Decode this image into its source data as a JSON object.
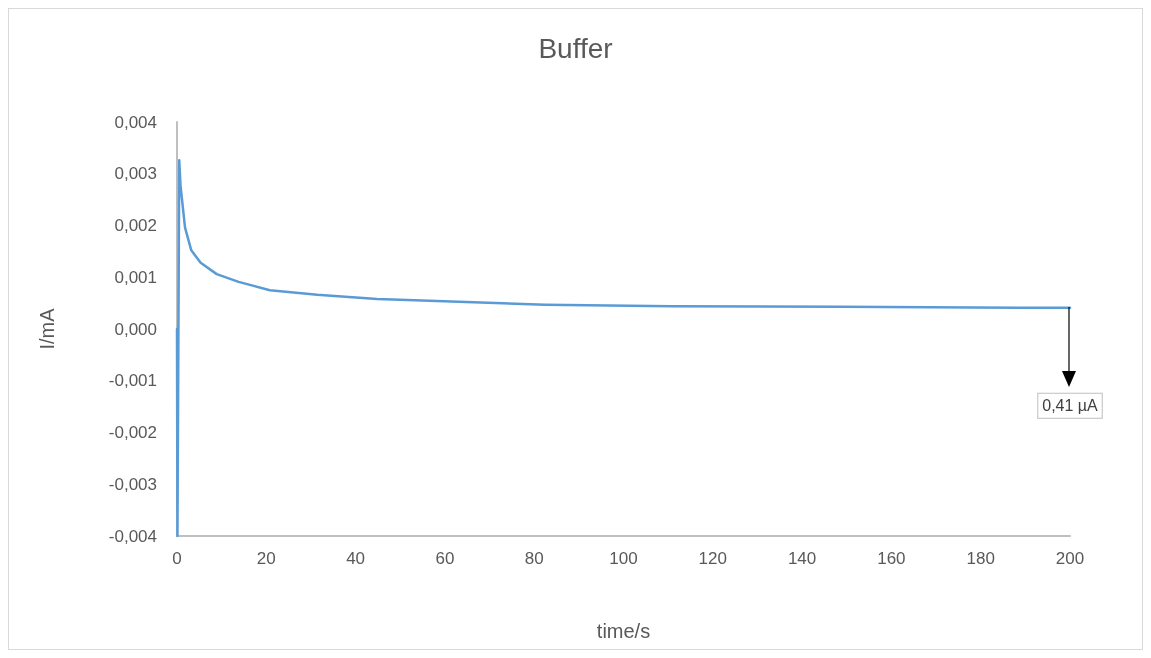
{
  "chart_data": {
    "type": "line",
    "title": "Buffer",
    "xlabel": "time/s",
    "ylabel": "I/mA",
    "x": [
      0,
      0.1,
      0.5,
      0.8,
      1.8,
      3.2,
      5.3,
      8.9,
      13.8,
      20.8,
      31.4,
      44.8,
      48.3,
      82.5,
      110.8,
      148.5,
      191.8,
      200
    ],
    "series": [
      {
        "color": "#5b9bd5",
        "values": [
          0,
          -0.004,
          0.00326,
          0.00276,
          0.00196,
          0.00152,
          0.00128,
          0.00106,
          0.00091,
          0.00075,
          0.00066,
          0.00058,
          0.00057,
          0.00047,
          0.00044,
          0.00043,
          0.00041,
          0.00041
        ]
      }
    ],
    "xlim": [
      0,
      200
    ],
    "xticks": [
      0,
      20,
      40,
      60,
      80,
      100,
      120,
      140,
      160,
      180,
      200
    ],
    "ylim": [
      -0.004,
      0.004
    ],
    "yticks": [
      {
        "value": -0.004,
        "label": "-0,004"
      },
      {
        "value": -0.003,
        "label": "-0,003"
      },
      {
        "value": -0.002,
        "label": "-0,002"
      },
      {
        "value": -0.001,
        "label": "-0,001"
      },
      {
        "value": 0,
        "label": "0,000"
      },
      {
        "value": 0.001,
        "label": "0,001"
      },
      {
        "value": 0.002,
        "label": "0,002"
      },
      {
        "value": 0.003,
        "label": "0,003"
      },
      {
        "value": 0.004,
        "label": "0,004"
      }
    ],
    "annotations": [
      "0,41 µA"
    ],
    "grid": false,
    "marker": "none",
    "line_style": "solid"
  }
}
